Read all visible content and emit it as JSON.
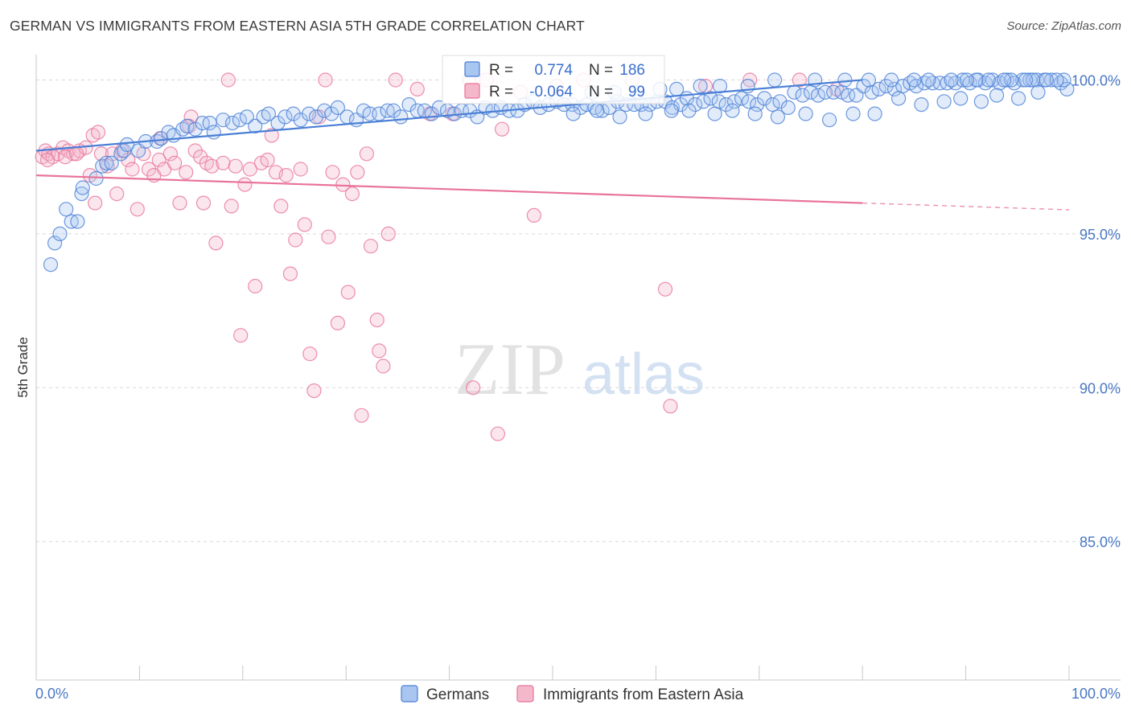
{
  "colors": {
    "germans": "#4a7fd6",
    "germans_fill": "#a9c6f0",
    "immigrants": "#e8739a",
    "immigrants_fill": "#f4b8cb",
    "tick_text": "#4a78c4",
    "grid": "#d9d9d9"
  },
  "chart_data": {
    "type": "scatter",
    "title": "GERMAN VS IMMIGRANTS FROM EASTERN ASIA 5TH GRADE CORRELATION CHART",
    "source": "Source: ZipAtlas.com",
    "xlabel": "",
    "ylabel": "5th Grade",
    "xlim": [
      0,
      100
    ],
    "ylim": [
      80.5,
      100.9
    ],
    "x_tick_labels": {
      "min": "0.0%",
      "max": "100.0%"
    },
    "y_ticks": [
      {
        "value": 100,
        "label": "100.0%"
      },
      {
        "value": 95,
        "label": "95.0%"
      },
      {
        "value": 90,
        "label": "90.0%"
      },
      {
        "value": 85,
        "label": "85.0%"
      }
    ],
    "watermark": {
      "zip": "ZIP",
      "atlas": "atlas"
    },
    "legend": {
      "stats": [
        {
          "r_label": "R =",
          "r_value": "0.774",
          "n_label": "N =",
          "n_value": "186"
        },
        {
          "r_label": "R =",
          "r_value": "-0.064",
          "n_label": "N =",
          "n_value": "99"
        }
      ]
    },
    "series": [
      {
        "name": "Germans",
        "r": 0.774,
        "n": 186,
        "trend": {
          "x": [
            0,
            80
          ],
          "y": [
            97.7,
            100.0
          ]
        },
        "points": [
          [
            1.4,
            94.0
          ],
          [
            1.8,
            94.7
          ],
          [
            2.3,
            95.0
          ],
          [
            3.4,
            95.4
          ],
          [
            4.0,
            95.4
          ],
          [
            2.9,
            95.8
          ],
          [
            4.4,
            96.3
          ],
          [
            4.5,
            96.5
          ],
          [
            5.8,
            96.8
          ],
          [
            6.4,
            97.2
          ],
          [
            6.8,
            97.3
          ],
          [
            7.3,
            97.3
          ],
          [
            8.2,
            97.6
          ],
          [
            8.5,
            97.7
          ],
          [
            9.9,
            97.7
          ],
          [
            8.8,
            97.9
          ],
          [
            10.6,
            98.0
          ],
          [
            11.7,
            98.0
          ],
          [
            12.1,
            98.1
          ],
          [
            12.8,
            98.3
          ],
          [
            13.3,
            98.2
          ],
          [
            14.2,
            98.4
          ],
          [
            14.6,
            98.5
          ],
          [
            15.4,
            98.4
          ],
          [
            16.1,
            98.6
          ],
          [
            16.8,
            98.6
          ],
          [
            17.2,
            98.3
          ],
          [
            18.1,
            98.7
          ],
          [
            19.0,
            98.6
          ],
          [
            19.7,
            98.7
          ],
          [
            20.4,
            98.8
          ],
          [
            21.2,
            98.5
          ],
          [
            22.0,
            98.8
          ],
          [
            22.5,
            98.9
          ],
          [
            23.4,
            98.6
          ],
          [
            24.1,
            98.8
          ],
          [
            24.9,
            98.9
          ],
          [
            25.6,
            98.7
          ],
          [
            26.4,
            98.9
          ],
          [
            27.1,
            98.8
          ],
          [
            27.9,
            99.0
          ],
          [
            28.6,
            98.9
          ],
          [
            29.2,
            99.1
          ],
          [
            30.1,
            98.8
          ],
          [
            31.0,
            98.7
          ],
          [
            31.7,
            99.0
          ],
          [
            32.3,
            98.9
          ],
          [
            33.2,
            98.9
          ],
          [
            34.0,
            99.0
          ],
          [
            34.6,
            99.0
          ],
          [
            35.3,
            98.8
          ],
          [
            36.1,
            99.2
          ],
          [
            36.9,
            99.0
          ],
          [
            37.6,
            99.0
          ],
          [
            38.3,
            98.9
          ],
          [
            39.0,
            99.1
          ],
          [
            39.8,
            99.0
          ],
          [
            40.5,
            98.9
          ],
          [
            41.2,
            99.0
          ],
          [
            42.0,
            99.0
          ],
          [
            42.7,
            98.8
          ],
          [
            43.5,
            99.1
          ],
          [
            44.2,
            99.0
          ],
          [
            45.0,
            99.1
          ],
          [
            45.8,
            99.0
          ],
          [
            46.6,
            99.0
          ],
          [
            47.3,
            99.2
          ],
          [
            48.1,
            99.3
          ],
          [
            48.8,
            99.1
          ],
          [
            49.6,
            99.2
          ],
          [
            50.4,
            99.3
          ],
          [
            51.1,
            99.2
          ],
          [
            51.9,
            99.2
          ],
          [
            52.7,
            99.1
          ],
          [
            53.3,
            99.2
          ],
          [
            54.1,
            99.1
          ],
          [
            54.8,
            99.0
          ],
          [
            55.5,
            99.1
          ],
          [
            56.3,
            99.3
          ],
          [
            57.1,
            99.2
          ],
          [
            57.9,
            99.2
          ],
          [
            58.6,
            99.2
          ],
          [
            59.4,
            99.2
          ],
          [
            60.1,
            99.3
          ],
          [
            60.9,
            99.3
          ],
          [
            61.6,
            99.1
          ],
          [
            62.4,
            99.2
          ],
          [
            63.0,
            99.4
          ],
          [
            63.8,
            99.2
          ],
          [
            64.6,
            99.3
          ],
          [
            65.3,
            99.4
          ],
          [
            66.1,
            99.3
          ],
          [
            66.8,
            99.2
          ],
          [
            67.6,
            99.3
          ],
          [
            68.3,
            99.4
          ],
          [
            69.0,
            99.3
          ],
          [
            69.8,
            99.2
          ],
          [
            70.5,
            99.4
          ],
          [
            71.3,
            99.2
          ],
          [
            72.0,
            99.3
          ],
          [
            72.8,
            99.1
          ],
          [
            73.4,
            99.6
          ],
          [
            74.2,
            99.5
          ],
          [
            75.0,
            99.6
          ],
          [
            75.7,
            99.5
          ],
          [
            76.4,
            99.6
          ],
          [
            77.2,
            99.6
          ],
          [
            78.0,
            99.6
          ],
          [
            78.6,
            99.5
          ],
          [
            79.4,
            99.5
          ],
          [
            80.1,
            99.8
          ],
          [
            80.9,
            99.6
          ],
          [
            81.6,
            99.7
          ],
          [
            82.3,
            99.8
          ],
          [
            83.1,
            99.7
          ],
          [
            83.9,
            99.8
          ],
          [
            84.6,
            99.9
          ],
          [
            85.2,
            99.8
          ],
          [
            86.0,
            99.9
          ],
          [
            86.8,
            99.9
          ],
          [
            87.5,
            99.9
          ],
          [
            88.2,
            99.9
          ],
          [
            89.0,
            99.9
          ],
          [
            89.7,
            100.0
          ],
          [
            90.4,
            99.9
          ],
          [
            91.2,
            100.0
          ],
          [
            91.9,
            99.9
          ],
          [
            92.6,
            100.0
          ],
          [
            93.3,
            99.9
          ],
          [
            94.0,
            100.0
          ],
          [
            94.7,
            99.9
          ],
          [
            95.5,
            100.0
          ],
          [
            96.2,
            100.0
          ],
          [
            96.9,
            100.0
          ],
          [
            97.6,
            100.0
          ],
          [
            98.3,
            100.0
          ],
          [
            52.0,
            98.9
          ],
          [
            54.3,
            99.0
          ],
          [
            56.5,
            98.8
          ],
          [
            59.0,
            98.9
          ],
          [
            61.5,
            99.0
          ],
          [
            63.2,
            99.0
          ],
          [
            65.7,
            98.9
          ],
          [
            67.4,
            99.0
          ],
          [
            69.6,
            98.9
          ],
          [
            71.8,
            98.8
          ],
          [
            74.5,
            98.9
          ],
          [
            76.8,
            98.7
          ],
          [
            79.1,
            98.9
          ],
          [
            81.2,
            98.9
          ],
          [
            83.5,
            99.4
          ],
          [
            85.7,
            99.2
          ],
          [
            87.9,
            99.3
          ],
          [
            89.5,
            99.4
          ],
          [
            91.5,
            99.3
          ],
          [
            93.0,
            99.5
          ],
          [
            95.1,
            99.4
          ],
          [
            97.0,
            99.6
          ],
          [
            99.2,
            99.9
          ],
          [
            99.8,
            99.7
          ],
          [
            99.5,
            100.0
          ],
          [
            98.8,
            100.0
          ],
          [
            97.8,
            100.0
          ],
          [
            96.5,
            100.0
          ],
          [
            95.8,
            100.0
          ],
          [
            94.4,
            100.0
          ],
          [
            93.7,
            100.0
          ],
          [
            92.2,
            100.0
          ],
          [
            91.0,
            100.0
          ],
          [
            90.1,
            100.0
          ],
          [
            88.6,
            100.0
          ],
          [
            86.4,
            100.0
          ],
          [
            85.0,
            100.0
          ],
          [
            82.8,
            100.0
          ],
          [
            80.6,
            100.0
          ],
          [
            78.3,
            100.0
          ],
          [
            75.4,
            100.0
          ],
          [
            71.5,
            100.0
          ],
          [
            68.9,
            99.8
          ],
          [
            66.2,
            99.8
          ],
          [
            64.3,
            99.8
          ],
          [
            62.0,
            99.7
          ],
          [
            60.4,
            99.7
          ],
          [
            58.2,
            99.6
          ],
          [
            56.0,
            99.6
          ],
          [
            53.8,
            99.6
          ]
        ]
      },
      {
        "name": "Immigrants from Eastern Asia",
        "r": -0.064,
        "n": 99,
        "trend": {
          "x": [
            0,
            80
          ],
          "y": [
            96.9,
            96.0
          ]
        },
        "trend_dashed": {
          "x": [
            80,
            100
          ],
          "y": [
            96.0,
            95.78
          ]
        },
        "points": [
          [
            0.6,
            97.5
          ],
          [
            0.9,
            97.7
          ],
          [
            1.2,
            97.6
          ],
          [
            1.6,
            97.5
          ],
          [
            2.1,
            97.6
          ],
          [
            2.6,
            97.8
          ],
          [
            3.1,
            97.7
          ],
          [
            3.6,
            97.6
          ],
          [
            4.2,
            97.7
          ],
          [
            4.8,
            97.8
          ],
          [
            5.2,
            96.9
          ],
          [
            5.7,
            96.0
          ],
          [
            6.3,
            97.6
          ],
          [
            6.9,
            97.2
          ],
          [
            7.4,
            97.6
          ],
          [
            7.8,
            96.3
          ],
          [
            8.3,
            97.7
          ],
          [
            8.9,
            97.4
          ],
          [
            9.3,
            97.1
          ],
          [
            9.8,
            95.8
          ],
          [
            10.4,
            97.6
          ],
          [
            10.9,
            97.1
          ],
          [
            11.4,
            96.9
          ],
          [
            11.9,
            97.4
          ],
          [
            12.4,
            97.1
          ],
          [
            13.0,
            97.6
          ],
          [
            13.4,
            97.3
          ],
          [
            13.9,
            96.0
          ],
          [
            14.5,
            97.0
          ],
          [
            15.0,
            98.8
          ],
          [
            15.4,
            97.7
          ],
          [
            15.9,
            97.5
          ],
          [
            16.5,
            97.3
          ],
          [
            17.0,
            97.2
          ],
          [
            17.4,
            94.7
          ],
          [
            18.1,
            97.3
          ],
          [
            18.6,
            100.0
          ],
          [
            18.9,
            95.9
          ],
          [
            19.3,
            97.2
          ],
          [
            19.8,
            91.7
          ],
          [
            20.2,
            96.6
          ],
          [
            20.7,
            97.1
          ],
          [
            21.2,
            93.3
          ],
          [
            21.8,
            97.3
          ],
          [
            22.4,
            97.4
          ],
          [
            22.8,
            98.2
          ],
          [
            23.2,
            97.0
          ],
          [
            23.7,
            95.9
          ],
          [
            24.2,
            96.9
          ],
          [
            24.6,
            93.7
          ],
          [
            25.1,
            94.8
          ],
          [
            25.6,
            97.1
          ],
          [
            26.0,
            95.3
          ],
          [
            26.5,
            91.1
          ],
          [
            26.9,
            89.9
          ],
          [
            27.4,
            98.8
          ],
          [
            28.0,
            100.0
          ],
          [
            28.3,
            94.9
          ],
          [
            28.7,
            97.0
          ],
          [
            29.2,
            92.1
          ],
          [
            29.7,
            96.6
          ],
          [
            30.2,
            93.1
          ],
          [
            30.6,
            96.3
          ],
          [
            31.1,
            97.0
          ],
          [
            31.5,
            89.1
          ],
          [
            32.0,
            97.6
          ],
          [
            32.4,
            94.6
          ],
          [
            33.0,
            92.2
          ],
          [
            33.2,
            91.2
          ],
          [
            33.6,
            90.7
          ],
          [
            34.1,
            95.0
          ],
          [
            34.8,
            100.0
          ],
          [
            36.9,
            99.7
          ],
          [
            38.1,
            98.9
          ],
          [
            40.3,
            98.9
          ],
          [
            41.9,
            100.0
          ],
          [
            42.3,
            90.0
          ],
          [
            43.6,
            100.0
          ],
          [
            44.7,
            88.5
          ],
          [
            45.1,
            98.4
          ],
          [
            46.9,
            99.6
          ],
          [
            48.2,
            95.6
          ],
          [
            50.4,
            99.8
          ],
          [
            53.0,
            100.0
          ],
          [
            57.7,
            100.0
          ],
          [
            61.4,
            89.4
          ],
          [
            64.8,
            99.8
          ],
          [
            69.1,
            100.0
          ],
          [
            73.9,
            100.0
          ],
          [
            77.5,
            99.7
          ],
          [
            1.1,
            97.4
          ],
          [
            2.8,
            97.5
          ],
          [
            3.9,
            97.6
          ],
          [
            5.5,
            98.2
          ],
          [
            6.0,
            98.3
          ],
          [
            12.0,
            98.1
          ],
          [
            14.8,
            98.5
          ],
          [
            16.2,
            96.0
          ],
          [
            60.9,
            93.2
          ]
        ]
      }
    ]
  }
}
